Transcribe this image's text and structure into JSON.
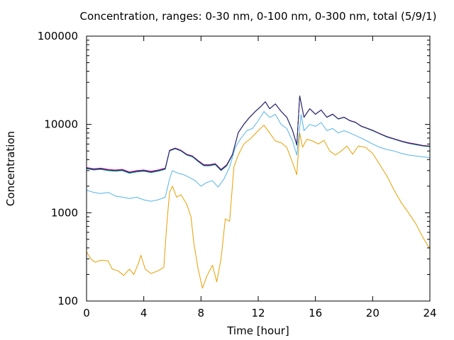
{
  "chart_data": {
    "type": "line",
    "title": "Concentration, ranges: 0-30 nm, 0-100 nm, 0-300 nm, total (5/9/1)",
    "xlabel": "Time [hour]",
    "ylabel": "Concentration",
    "xlim": [
      0,
      24
    ],
    "ylim": [
      100,
      100000
    ],
    "yscale": "log",
    "grid": false,
    "legend": "none",
    "x_ticks": [
      "0",
      "4",
      "8",
      "12",
      "16",
      "20",
      "24"
    ],
    "x_tick_values": [
      0,
      4,
      8,
      12,
      16,
      20,
      24
    ],
    "y_ticks": [
      "100",
      "1000",
      "10000",
      "100000"
    ],
    "y_tick_values": [
      100,
      1000,
      10000,
      100000
    ],
    "series": [
      {
        "color": "#e69f00",
        "points": [
          [
            0,
            360
          ],
          [
            0.3,
            300
          ],
          [
            0.6,
            275
          ],
          [
            1,
            290
          ],
          [
            1.5,
            285
          ],
          [
            1.8,
            230
          ],
          [
            2.2,
            220
          ],
          [
            2.6,
            195
          ],
          [
            3,
            230
          ],
          [
            3.3,
            200
          ],
          [
            3.6,
            260
          ],
          [
            3.8,
            330
          ],
          [
            4.1,
            230
          ],
          [
            4.5,
            205
          ],
          [
            5,
            220
          ],
          [
            5.4,
            240
          ],
          [
            5.6,
            700
          ],
          [
            5.8,
            1700
          ],
          [
            6,
            2000
          ],
          [
            6.3,
            1500
          ],
          [
            6.6,
            1600
          ],
          [
            7,
            1250
          ],
          [
            7.3,
            900
          ],
          [
            7.5,
            450
          ],
          [
            7.8,
            230
          ],
          [
            8.1,
            140
          ],
          [
            8.4,
            190
          ],
          [
            8.8,
            255
          ],
          [
            9.1,
            165
          ],
          [
            9.4,
            300
          ],
          [
            9.7,
            850
          ],
          [
            10,
            800
          ],
          [
            10.3,
            3300
          ],
          [
            10.6,
            4500
          ],
          [
            11,
            6000
          ],
          [
            11.5,
            7000
          ],
          [
            12,
            8500
          ],
          [
            12.4,
            9800
          ],
          [
            12.8,
            8000
          ],
          [
            13.2,
            6500
          ],
          [
            13.6,
            6200
          ],
          [
            14,
            5500
          ],
          [
            14.4,
            3700
          ],
          [
            14.7,
            2700
          ],
          [
            14.9,
            8000
          ],
          [
            15.1,
            5500
          ],
          [
            15.4,
            6800
          ],
          [
            15.8,
            6500
          ],
          [
            16.2,
            6000
          ],
          [
            16.6,
            6600
          ],
          [
            17,
            5000
          ],
          [
            17.4,
            4500
          ],
          [
            17.8,
            5000
          ],
          [
            18.2,
            5700
          ],
          [
            18.6,
            4600
          ],
          [
            19,
            5700
          ],
          [
            19.5,
            5500
          ],
          [
            20,
            4700
          ],
          [
            20.5,
            3500
          ],
          [
            21,
            2600
          ],
          [
            21.5,
            1800
          ],
          [
            22,
            1300
          ],
          [
            22.5,
            1000
          ],
          [
            23,
            760
          ],
          [
            23.5,
            530
          ],
          [
            24,
            390
          ]
        ]
      },
      {
        "color": "#56b4e9",
        "points": [
          [
            0,
            1800
          ],
          [
            0.5,
            1700
          ],
          [
            1,
            1650
          ],
          [
            1.5,
            1700
          ],
          [
            2,
            1550
          ],
          [
            2.5,
            1500
          ],
          [
            3,
            1450
          ],
          [
            3.5,
            1500
          ],
          [
            4,
            1400
          ],
          [
            4.5,
            1350
          ],
          [
            5,
            1400
          ],
          [
            5.5,
            1500
          ],
          [
            5.8,
            2400
          ],
          [
            6,
            3000
          ],
          [
            6.4,
            2800
          ],
          [
            6.8,
            2700
          ],
          [
            7.2,
            2500
          ],
          [
            7.6,
            2300
          ],
          [
            8,
            2000
          ],
          [
            8.4,
            2200
          ],
          [
            8.8,
            2300
          ],
          [
            9.2,
            1950
          ],
          [
            9.6,
            2400
          ],
          [
            10,
            3300
          ],
          [
            10.4,
            5500
          ],
          [
            10.8,
            7000
          ],
          [
            11.2,
            8500
          ],
          [
            11.6,
            9000
          ],
          [
            12,
            11000
          ],
          [
            12.4,
            14000
          ],
          [
            12.8,
            12000
          ],
          [
            13.2,
            13000
          ],
          [
            13.6,
            10000
          ],
          [
            14,
            9000
          ],
          [
            14.4,
            6500
          ],
          [
            14.7,
            4500
          ],
          [
            15,
            13000
          ],
          [
            15.2,
            8500
          ],
          [
            15.6,
            10000
          ],
          [
            16,
            9500
          ],
          [
            16.4,
            10500
          ],
          [
            16.8,
            8500
          ],
          [
            17.2,
            9000
          ],
          [
            17.6,
            8000
          ],
          [
            18,
            8500
          ],
          [
            18.4,
            8000
          ],
          [
            18.8,
            7500
          ],
          [
            19.2,
            7000
          ],
          [
            19.6,
            6500
          ],
          [
            20,
            6000
          ],
          [
            20.5,
            5500
          ],
          [
            21,
            5200
          ],
          [
            21.5,
            5000
          ],
          [
            22,
            4700
          ],
          [
            22.5,
            4500
          ],
          [
            23,
            4400
          ],
          [
            23.5,
            4300
          ],
          [
            24,
            4200
          ]
        ]
      },
      {
        "color": "#009e73",
        "points": [
          [
            0,
            3150
          ],
          [
            0.5,
            3050
          ],
          [
            1,
            3100
          ],
          [
            1.5,
            3000
          ],
          [
            2,
            2950
          ],
          [
            2.5,
            3000
          ],
          [
            3,
            2800
          ],
          [
            3.5,
            2900
          ],
          [
            4,
            2950
          ],
          [
            4.5,
            2850
          ],
          [
            5,
            2950
          ],
          [
            5.5,
            3100
          ],
          [
            5.8,
            5000
          ],
          [
            6.2,
            5300
          ],
          [
            6.6,
            5000
          ],
          [
            7,
            4500
          ],
          [
            7.4,
            4300
          ],
          [
            7.8,
            3800
          ],
          [
            8.2,
            3400
          ],
          [
            8.6,
            3400
          ],
          [
            9,
            3500
          ],
          [
            9.4,
            3000
          ],
          [
            9.8,
            3400
          ],
          [
            10.2,
            4500
          ],
          [
            10.6,
            8000
          ],
          [
            11,
            10000
          ],
          [
            11.4,
            12000
          ],
          [
            11.8,
            14000
          ],
          [
            12.2,
            16000
          ],
          [
            12.5,
            18000
          ],
          [
            12.8,
            15000
          ],
          [
            13.2,
            17000
          ],
          [
            13.6,
            14000
          ],
          [
            14,
            12000
          ],
          [
            14.4,
            8500
          ],
          [
            14.7,
            5800
          ],
          [
            14.9,
            21000
          ],
          [
            15.2,
            12000
          ],
          [
            15.6,
            15000
          ],
          [
            16,
            13000
          ],
          [
            16.4,
            14500
          ],
          [
            16.8,
            12000
          ],
          [
            17.2,
            13000
          ],
          [
            17.6,
            11500
          ],
          [
            18,
            12000
          ],
          [
            18.4,
            11000
          ],
          [
            18.8,
            10500
          ],
          [
            19.2,
            9500
          ],
          [
            19.6,
            9000
          ],
          [
            20,
            8500
          ],
          [
            20.5,
            7800
          ],
          [
            21,
            7200
          ],
          [
            21.5,
            6800
          ],
          [
            22,
            6400
          ],
          [
            22.5,
            6100
          ],
          [
            23,
            5900
          ],
          [
            23.5,
            5700
          ],
          [
            24,
            5600
          ]
        ]
      },
      {
        "color": "#cc0099",
        "points": [
          [
            0,
            3250
          ],
          [
            0.5,
            3150
          ],
          [
            1,
            3200
          ],
          [
            1.5,
            3100
          ],
          [
            2,
            3050
          ],
          [
            2.5,
            3100
          ],
          [
            3,
            2900
          ],
          [
            3.5,
            3000
          ],
          [
            4,
            3050
          ],
          [
            4.5,
            2950
          ],
          [
            5,
            3050
          ],
          [
            5.5,
            3200
          ],
          [
            5.8,
            5100
          ],
          [
            6.2,
            5400
          ],
          [
            6.6,
            5100
          ],
          [
            7,
            4600
          ],
          [
            7.4,
            4400
          ],
          [
            7.8,
            3900
          ],
          [
            8.2,
            3500
          ],
          [
            8.6,
            3500
          ],
          [
            9,
            3600
          ],
          [
            9.4,
            3100
          ],
          [
            9.8,
            3500
          ],
          [
            10.2,
            4600
          ],
          [
            10.6,
            8100
          ],
          [
            11,
            10100
          ],
          [
            11.4,
            12100
          ],
          [
            11.8,
            14100
          ],
          [
            12.2,
            16100
          ],
          [
            12.5,
            18100
          ],
          [
            12.8,
            15100
          ],
          [
            13.2,
            17100
          ],
          [
            13.6,
            14100
          ],
          [
            14,
            12100
          ],
          [
            14.4,
            8600
          ],
          [
            14.7,
            5900
          ],
          [
            14.9,
            21100
          ],
          [
            15.2,
            12100
          ],
          [
            15.6,
            15100
          ],
          [
            16,
            13100
          ],
          [
            16.4,
            14600
          ],
          [
            16.8,
            12100
          ],
          [
            17.2,
            13100
          ],
          [
            17.6,
            11600
          ],
          [
            18,
            12100
          ],
          [
            18.4,
            11100
          ],
          [
            18.8,
            10600
          ],
          [
            19.2,
            9600
          ],
          [
            19.6,
            9100
          ],
          [
            20,
            8600
          ],
          [
            20.5,
            7900
          ],
          [
            21,
            7300
          ],
          [
            21.5,
            6900
          ],
          [
            22,
            6500
          ],
          [
            22.5,
            6200
          ],
          [
            23,
            6000
          ],
          [
            23.5,
            5800
          ],
          [
            24,
            5700
          ]
        ]
      },
      {
        "color": "#1f2d6e",
        "points": [
          [
            0,
            3200
          ],
          [
            0.5,
            3100
          ],
          [
            1,
            3150
          ],
          [
            1.5,
            3050
          ],
          [
            2,
            3000
          ],
          [
            2.5,
            3050
          ],
          [
            3,
            2850
          ],
          [
            3.5,
            2950
          ],
          [
            4,
            3000
          ],
          [
            4.5,
            2900
          ],
          [
            5,
            3000
          ],
          [
            5.5,
            3150
          ],
          [
            5.8,
            5050
          ],
          [
            6.2,
            5350
          ],
          [
            6.6,
            5050
          ],
          [
            7,
            4550
          ],
          [
            7.4,
            4350
          ],
          [
            7.8,
            3850
          ],
          [
            8.2,
            3450
          ],
          [
            8.6,
            3450
          ],
          [
            9,
            3550
          ],
          [
            9.4,
            3050
          ],
          [
            9.8,
            3450
          ],
          [
            10.2,
            4550
          ],
          [
            10.6,
            8050
          ],
          [
            11,
            10050
          ],
          [
            11.4,
            12050
          ],
          [
            11.8,
            14050
          ],
          [
            12.2,
            16050
          ],
          [
            12.5,
            18050
          ],
          [
            12.8,
            15050
          ],
          [
            13.2,
            17050
          ],
          [
            13.6,
            14050
          ],
          [
            14,
            12050
          ],
          [
            14.4,
            8550
          ],
          [
            14.7,
            5850
          ],
          [
            14.9,
            21050
          ],
          [
            15.2,
            12050
          ],
          [
            15.6,
            15050
          ],
          [
            16,
            13050
          ],
          [
            16.4,
            14550
          ],
          [
            16.8,
            12050
          ],
          [
            17.2,
            13050
          ],
          [
            17.6,
            11550
          ],
          [
            18,
            12050
          ],
          [
            18.4,
            11050
          ],
          [
            18.8,
            10550
          ],
          [
            19.2,
            9550
          ],
          [
            19.6,
            9050
          ],
          [
            20,
            8550
          ],
          [
            20.5,
            7850
          ],
          [
            21,
            7250
          ],
          [
            21.5,
            6850
          ],
          [
            22,
            6450
          ],
          [
            22.5,
            6150
          ],
          [
            23,
            5950
          ],
          [
            23.5,
            5750
          ],
          [
            24,
            5650
          ]
        ]
      }
    ]
  }
}
